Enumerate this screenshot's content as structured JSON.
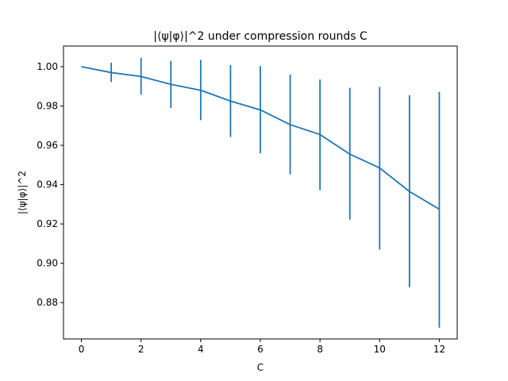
{
  "chart_data": {
    "type": "line",
    "title": "|⟨ψ|φ⟩|^2 under compression rounds C",
    "xlabel": "C",
    "ylabel": "|⟨ψ|φ⟩|^2",
    "xlim": [
      -0.6,
      12.6
    ],
    "ylim": [
      0.8615,
      1.0105
    ],
    "xticks": [
      0,
      2,
      4,
      6,
      8,
      10,
      12
    ],
    "yticks": [
      0.88,
      0.9,
      0.92,
      0.94,
      0.96,
      0.98,
      1.0
    ],
    "ytick_labels": [
      "0.88",
      "0.90",
      "0.92",
      "0.94",
      "0.96",
      "0.98",
      "1.00"
    ],
    "grid": false,
    "color": "#1f77b4",
    "series": [
      {
        "x": [
          0,
          1,
          2,
          3,
          4,
          5,
          6,
          7,
          8,
          9,
          10,
          11,
          12
        ],
        "y": [
          1.0,
          0.997,
          0.995,
          0.991,
          0.988,
          0.9825,
          0.978,
          0.9705,
          0.9655,
          0.9555,
          0.9485,
          0.9365,
          0.9275
        ],
        "yerr_low": [
          null,
          0.9922,
          0.9858,
          0.979,
          0.9728,
          0.9642,
          0.956,
          0.9452,
          0.9372,
          0.9222,
          0.907,
          0.8878,
          0.8672
        ],
        "yerr_high": [
          null,
          1.002,
          1.0045,
          1.003,
          1.0035,
          1.0008,
          1.0003,
          0.996,
          0.9935,
          0.9893,
          0.9897,
          0.9855,
          0.9872
        ]
      }
    ]
  }
}
